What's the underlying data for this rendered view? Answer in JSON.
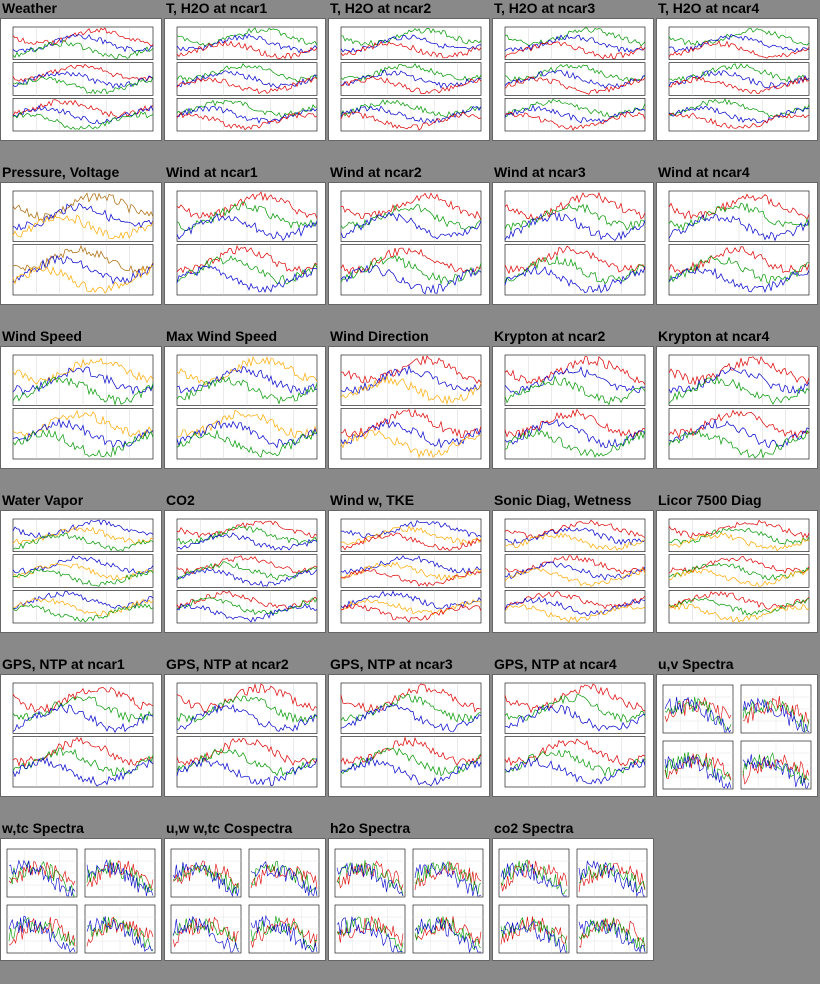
{
  "grid": {
    "rows": [
      [
        {
          "title": "Weather",
          "kind": "ts3",
          "colors": [
            "#d00",
            "#00c",
            "#090"
          ]
        },
        {
          "title": "T, H2O at ncar1",
          "kind": "ts3",
          "colors": [
            "#090",
            "#00c",
            "#d00"
          ]
        },
        {
          "title": "T, H2O at ncar2",
          "kind": "ts3",
          "colors": [
            "#090",
            "#00c",
            "#d00"
          ]
        },
        {
          "title": "T, H2O at ncar3",
          "kind": "ts3",
          "colors": [
            "#090",
            "#00c",
            "#d00"
          ]
        },
        {
          "title": "T, H2O at ncar4",
          "kind": "ts3",
          "colors": [
            "#090",
            "#00c",
            "#d00"
          ]
        }
      ],
      [
        {
          "title": "Pressure, Voltage",
          "kind": "ts2",
          "colors": [
            "#a60",
            "#00c",
            "#fa0"
          ]
        },
        {
          "title": "Wind at ncar1",
          "kind": "ts2",
          "colors": [
            "#d00",
            "#090",
            "#00c"
          ]
        },
        {
          "title": "Wind at ncar2",
          "kind": "ts2",
          "colors": [
            "#d00",
            "#090",
            "#00c"
          ]
        },
        {
          "title": "Wind at ncar3",
          "kind": "ts2",
          "colors": [
            "#d00",
            "#090",
            "#00c"
          ]
        },
        {
          "title": "Wind at ncar4",
          "kind": "ts2",
          "colors": [
            "#d00",
            "#090",
            "#00c"
          ]
        }
      ],
      [
        {
          "title": "Wind Speed",
          "kind": "ts2",
          "colors": [
            "#fa0",
            "#00c",
            "#090"
          ]
        },
        {
          "title": "Max Wind Speed",
          "kind": "ts2",
          "colors": [
            "#fa0",
            "#00c",
            "#090"
          ]
        },
        {
          "title": "Wind Direction",
          "kind": "ts2",
          "colors": [
            "#d00",
            "#00c",
            "#fa0"
          ]
        },
        {
          "title": "Krypton at ncar2",
          "kind": "ts2",
          "colors": [
            "#d00",
            "#00c",
            "#090"
          ]
        },
        {
          "title": "Krypton at ncar4",
          "kind": "ts2",
          "colors": [
            "#d00",
            "#00c",
            "#090"
          ]
        }
      ],
      [
        {
          "title": "Water Vapor",
          "kind": "ts3",
          "colors": [
            "#00c",
            "#fa0",
            "#090"
          ]
        },
        {
          "title": "CO2",
          "kind": "ts3",
          "colors": [
            "#d00",
            "#090",
            "#00c"
          ]
        },
        {
          "title": "Wind w, TKE",
          "kind": "ts3",
          "colors": [
            "#00c",
            "#fa0",
            "#d00"
          ]
        },
        {
          "title": "Sonic Diag, Wetness",
          "kind": "ts3",
          "colors": [
            "#d00",
            "#00c",
            "#fa0"
          ]
        },
        {
          "title": "Licor 7500 Diag",
          "kind": "ts3",
          "colors": [
            "#d00",
            "#090",
            "#fa0"
          ]
        }
      ],
      [
        {
          "title": "GPS, NTP at ncar1",
          "kind": "ts2",
          "colors": [
            "#d00",
            "#090",
            "#00c"
          ]
        },
        {
          "title": "GPS, NTP at ncar2",
          "kind": "ts2",
          "colors": [
            "#d00",
            "#090",
            "#00c"
          ]
        },
        {
          "title": "GPS, NTP at ncar3",
          "kind": "ts2",
          "colors": [
            "#d00",
            "#090",
            "#00c"
          ]
        },
        {
          "title": "GPS, NTP at ncar4",
          "kind": "ts2",
          "colors": [
            "#d00",
            "#090",
            "#00c"
          ]
        },
        {
          "title": "u,v Spectra",
          "kind": "spec",
          "colors": [
            "#d00",
            "#090",
            "#00c"
          ]
        }
      ],
      [
        {
          "title": "w,tc Spectra",
          "kind": "spec",
          "colors": [
            "#d00",
            "#090",
            "#00c"
          ]
        },
        {
          "title": "u,w w,tc Cospectra",
          "kind": "spec",
          "colors": [
            "#d00",
            "#090",
            "#00c"
          ]
        },
        {
          "title": "h2o Spectra",
          "kind": "spec",
          "colors": [
            "#d00",
            "#090",
            "#00c"
          ]
        },
        {
          "title": "co2 Spectra",
          "kind": "spec",
          "colors": [
            "#d00",
            "#090",
            "#00c"
          ]
        }
      ]
    ]
  }
}
